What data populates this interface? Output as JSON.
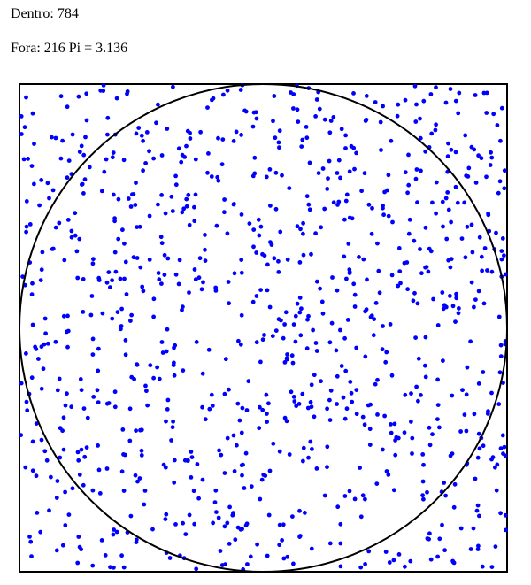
{
  "stats": {
    "inside_label": "Dentro:",
    "inside_count": "784",
    "outside_label": "Fora:",
    "outside_count": "216",
    "pi_label": "Pi =",
    "pi_value": "3.136"
  },
  "simulation": {
    "total_points": 1000,
    "inside_points": 784,
    "outside_points": 216,
    "point_color": "#0000ff",
    "shape_stroke_color": "#000000",
    "background_color": "#ffffff"
  }
}
